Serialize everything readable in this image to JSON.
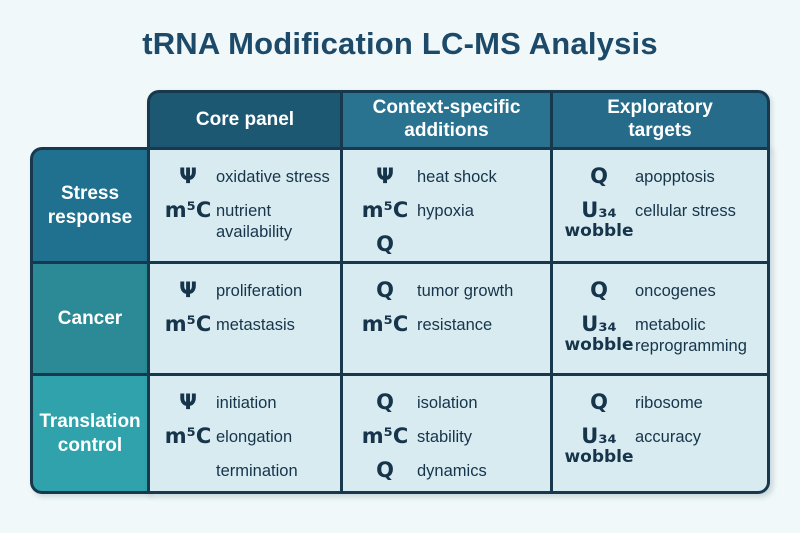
{
  "title": "tRNA Modification LC-MS Analysis",
  "colors": {
    "page_bg": "#f0f8f9",
    "border": "#17384d",
    "title_text": "#1c4a68",
    "cell_bg": "#d8ebf1",
    "cell_text": "#16344a",
    "header_text": "#ffffff"
  },
  "column_headers": [
    {
      "label": "Core panel",
      "bg": "#1d5873"
    },
    {
      "label": "Context-specific additions",
      "bg": "#2a7390"
    },
    {
      "label": "Exploratory targets",
      "bg": "#266b89"
    }
  ],
  "rows": [
    {
      "header": {
        "label": "Stress response",
        "bg": "#20708f"
      },
      "cells": [
        {
          "entries": [
            {
              "symbol": "Ψ",
              "symbol_sub": "",
              "label": "oxidative stress"
            },
            {
              "symbol": "m⁵C",
              "symbol_sub": "",
              "label": "nutrient availability"
            }
          ]
        },
        {
          "entries": [
            {
              "symbol": "Ψ",
              "symbol_sub": "",
              "label": "heat shock"
            },
            {
              "symbol": "m⁵C",
              "symbol_sub": "",
              "label": "hypoxia"
            },
            {
              "symbol": "Q",
              "symbol_sub": "",
              "label": ""
            }
          ]
        },
        {
          "entries": [
            {
              "symbol": "Q",
              "symbol_sub": "",
              "label": "apopptosis"
            },
            {
              "symbol": "U₃₄",
              "symbol_sub": "wobble",
              "label": "cellular stress"
            }
          ]
        }
      ]
    },
    {
      "header": {
        "label": "Cancer",
        "bg": "#2b8a95"
      },
      "cells": [
        {
          "entries": [
            {
              "symbol": "Ψ",
              "symbol_sub": "",
              "label": "proliferation"
            },
            {
              "symbol": "m⁵C",
              "symbol_sub": "",
              "label": "metastasis"
            }
          ]
        },
        {
          "entries": [
            {
              "symbol": "Q",
              "symbol_sub": "",
              "label": "tumor growth"
            },
            {
              "symbol": "m⁵C",
              "symbol_sub": "",
              "label": "resistance"
            }
          ]
        },
        {
          "entries": [
            {
              "symbol": "Q",
              "symbol_sub": "",
              "label": "oncogenes"
            },
            {
              "symbol": "U₃₄",
              "symbol_sub": "wobble",
              "label": "metabolic reprogramming"
            }
          ]
        }
      ]
    },
    {
      "header": {
        "label": "Translation control",
        "bg": "#2fa2ab"
      },
      "cells": [
        {
          "entries": [
            {
              "symbol": "Ψ",
              "symbol_sub": "",
              "label": "initiation"
            },
            {
              "symbol": "m⁵C",
              "symbol_sub": "",
              "label": "elongation"
            },
            {
              "symbol": "",
              "symbol_sub": "",
              "label": "termination"
            }
          ]
        },
        {
          "entries": [
            {
              "symbol": "Q",
              "symbol_sub": "",
              "label": "isolation"
            },
            {
              "symbol": "m⁵C",
              "symbol_sub": "",
              "label": "stability"
            },
            {
              "symbol": "Q",
              "symbol_sub": "",
              "label": "dynamics"
            }
          ]
        },
        {
          "entries": [
            {
              "symbol": "Q",
              "symbol_sub": "",
              "label": "ribosome"
            },
            {
              "symbol": "U₃₄",
              "symbol_sub": "wobble",
              "label": "accuracy"
            }
          ]
        }
      ]
    }
  ]
}
